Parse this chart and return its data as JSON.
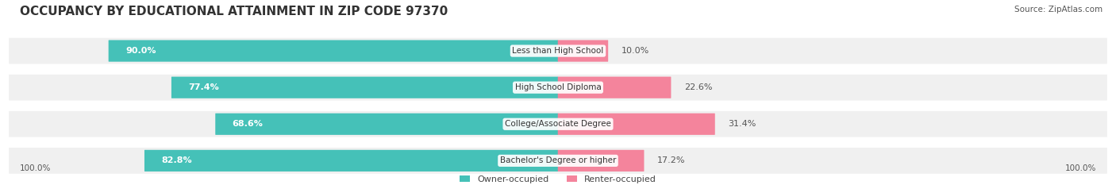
{
  "title": "OCCUPANCY BY EDUCATIONAL ATTAINMENT IN ZIP CODE 97370",
  "source": "Source: ZipAtlas.com",
  "categories": [
    "Less than High School",
    "High School Diploma",
    "College/Associate Degree",
    "Bachelor's Degree or higher"
  ],
  "owner_values": [
    90.0,
    77.4,
    68.6,
    82.8
  ],
  "renter_values": [
    10.0,
    22.6,
    31.4,
    17.2
  ],
  "owner_color": "#45C1B8",
  "renter_color": "#F4849C",
  "row_bg_color": "#F0F0F0",
  "title_fontsize": 11,
  "source_fontsize": 7.5,
  "label_fontsize": 8,
  "legend_fontsize": 8,
  "axis_label_fontsize": 7.5,
  "background_color": "#FFFFFF"
}
